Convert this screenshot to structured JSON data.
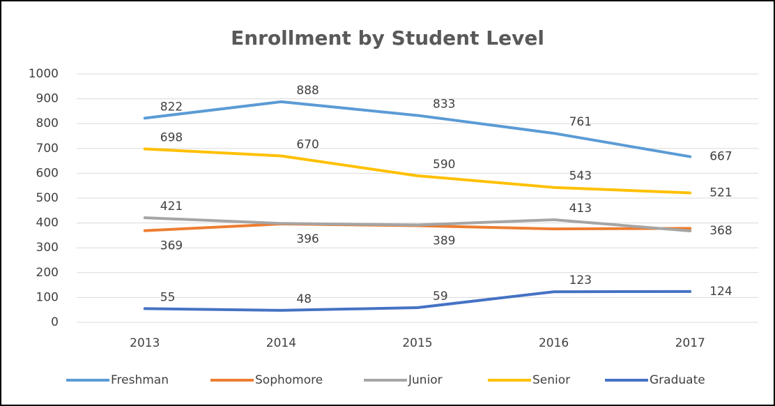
{
  "chart_data": {
    "type": "line",
    "title": "Enrollment by Student Level",
    "categories": [
      "2013",
      "2014",
      "2015",
      "2016",
      "2017"
    ],
    "series": [
      {
        "name": "Freshman",
        "color": "#5b9bd5",
        "values": [
          822,
          888,
          833,
          761,
          667
        ],
        "value_labels": [
          "822",
          "888",
          "833",
          "761",
          "667"
        ]
      },
      {
        "name": "Sophomore",
        "color": "#ed7d31",
        "values": [
          369,
          396,
          389,
          376,
          378
        ],
        "value_labels": [
          "369",
          "396",
          "389",
          null,
          null
        ]
      },
      {
        "name": "Junior",
        "color": "#a5a5a5",
        "values": [
          421,
          398,
          392,
          413,
          368
        ],
        "value_labels": [
          "421",
          null,
          null,
          "413",
          "368"
        ]
      },
      {
        "name": "Senior",
        "color": "#ffc000",
        "values": [
          698,
          670,
          590,
          543,
          521
        ],
        "value_labels": [
          "698",
          "670",
          "590",
          "543",
          "521"
        ]
      },
      {
        "name": "Graduate",
        "color": "#4472c4",
        "values": [
          55,
          48,
          59,
          123,
          124
        ],
        "value_labels": [
          "55",
          "48",
          "59",
          "123",
          "124"
        ]
      }
    ],
    "ylim": [
      0,
      1000
    ],
    "yticks": [
      0,
      100,
      200,
      300,
      400,
      500,
      600,
      700,
      800,
      900,
      1000
    ],
    "grid": true,
    "legend": "bottom"
  }
}
